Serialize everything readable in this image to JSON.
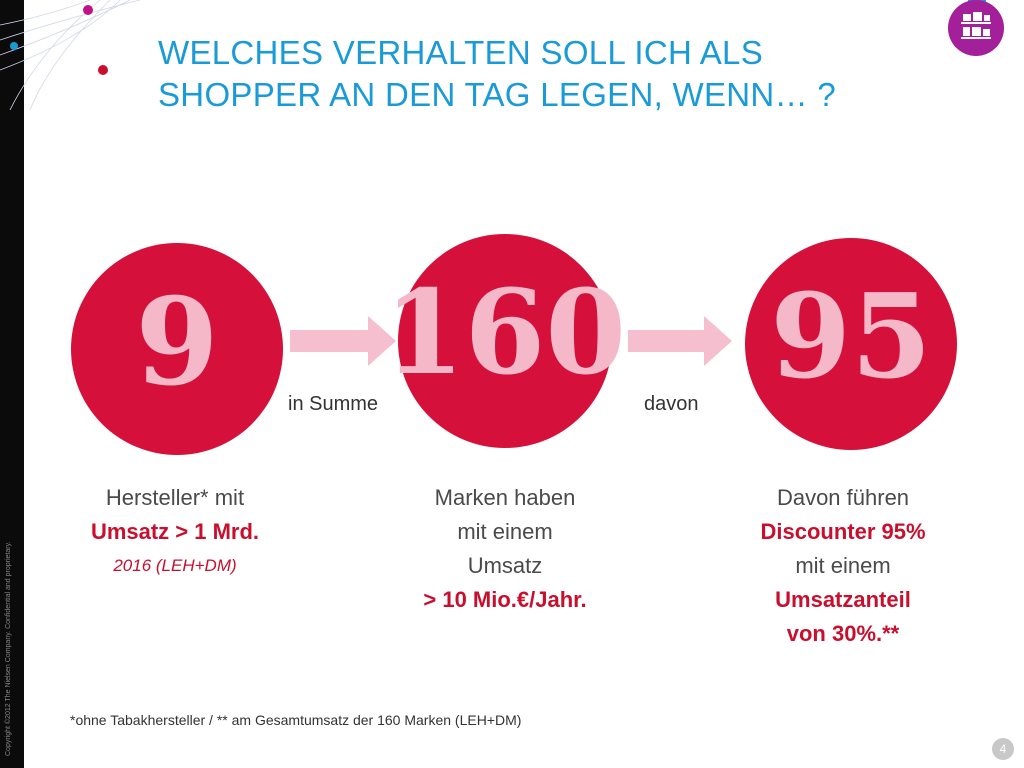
{
  "slide": {
    "title_line1": "WELCHES VERHALTEN SOLL ICH ALS",
    "title_line2": "SHOPPER AN DEN TAG LEGEN, WENN… ?",
    "copyright": "Copyright ©2012 The Nielsen Company. Confidential and proprietary.",
    "logo_icon": "shelf-icon",
    "colors": {
      "accent_blue": "#1a9ad6",
      "circle_red": "#d5103a",
      "number_pink": "#f4b8c8",
      "highlight_red": "#c8102e",
      "arrow_pink": "#f6bfd0",
      "logo_purple": "#a4209a"
    }
  },
  "stats": [
    {
      "number": "9",
      "desc_line1": "Hersteller* mit",
      "desc_line2": "Umsatz > 1 Mrd.",
      "desc_line3": "2016 (LEH+DM)"
    },
    {
      "number": "160",
      "desc_line1": "Marken haben",
      "desc_line2": "mit einem",
      "desc_line3": "Umsatz",
      "desc_line4": "> 10 Mio.€/Jahr."
    },
    {
      "number": "95",
      "desc_line1": "Davon führen",
      "desc_line2": "Discounter 95%",
      "desc_line3": "mit einem",
      "desc_line4": "Umsatzanteil",
      "desc_line5": "von 30%.**"
    }
  ],
  "connectors": [
    {
      "label": "in Summe"
    },
    {
      "label": "davon"
    }
  ],
  "footnote": "*ohne Tabakhersteller / ** am Gesamtumsatz der 160 Marken (LEH+DM)",
  "page_number": "4"
}
